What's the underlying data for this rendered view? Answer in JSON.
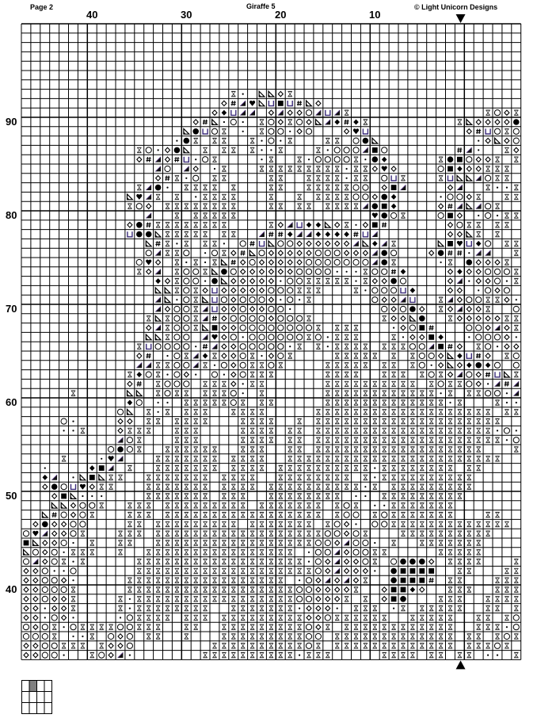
{
  "header": {
    "page_label": "Page 2",
    "title": "Giraffe 5",
    "copyright": "© Light Unicorn Designs"
  },
  "column_labels": [
    "40",
    "30",
    "20",
    "10"
  ],
  "row_labels": [
    "90",
    "80",
    "70",
    "60",
    "50",
    "40"
  ],
  "center_markers": {
    "top": "arrow-down-icon",
    "bottom": "arrow-up-icon"
  },
  "page_map": {
    "columns": 4,
    "rows": 3,
    "current_page": 2,
    "highlight_color": "#808080"
  },
  "pattern": {
    "symbol_codes": {
      ".": "empty",
      "h": "hourglass",
      "s": "small-dot",
      "o": "open-circle",
      "d": "open-diamond",
      "D": "filled-diamond",
      "c": "filled-circle",
      "S": "filled-square",
      "t": "triangle-lower-left",
      "T": "triangle-lower-right-filled",
      "u": "u-shape",
      "v": "heart",
      "f": "hash"
    },
    "rows": [
      ".......... .......... .......... .......... .......... ...",
      ".......... .......... .......... .......... .......... ...",
      ".......... .......... .......... .......... .......... ...",
      ".......... .......... .......... .......... .......... ...",
      ".......... .......... .......... .......... .......... ...",
      ".......... .......... .......... .......... .......... ...",
      ".......... .......... .......... .......... .......... ...",
      ".......... .......... ..hs.ttdh. .......... .......... ...",
      ".......... .......... .dfTvtuSuf td........ .......... ...",
      ".......... .......... dDuTT.dTdd oTuTh..... .........h odh",
      ".......... ........df tsos.hodho dtTDfDh... ......htdd ddc",
      ".......... .......tcu oh.s.hoosd o...dvu... .......dfu oho",
      ".......... ......sch. hh..hsosh. ..hh.oct.. ........sd tdo",
      ".......... ..hosdct.h .hh.hssh.. .hsoooTSo. ......fTs. .hd",
      ".......... ..dfTdfuso h....sh..h soooohscD. ....hcSodd h.h",
      ".......... ....To.Td. sh...hhhhh hhhhshhdvd ....oSDddh hh.",
      ".......... ....dfhso. hh....hh.. hhhhshh.ou h...huttTo hh.",
      ".......... ..hTcs.hhh h.h...hh.. hhhhhoo.dS T....dT..h ssh",
      ".......... .tvTh.h.sh hhh...h..h .hhhhoodcD ....soodh. .hh",
      ".......... .hod.hhhhh hhh...hh.h h.hhhhTcSD ....dfTtTo h..",
      ".......... ...T..h.hh hhh....... .......vco h...oSd.so shh",
      ".......... .dcfhhhhhh hh....hdTu DDtdhsdSf. .....dohh. hh.",
      ".......... .uccthhhhh .hh..TffDT TDDDDfuT.. .....ddth. h..",
      ".......... ...tfhsh.h hs.ofutood dddddTtDTh ....tSvuDo .hh",
      ".......... ...oThho.s ohdftodddd dooodddTco ...dcffsTT ..h",
      ".......... ..ovd.hshs htfdoddddd oooooooTch ....sh.cdd dh.",
      ".......... ..hdT.hooh tcoddddddo ooossshoof D....dDddo ooh",
      ".......... ....Ddhoos ctdddddsoo hhhhhshddc o....dTsdd osh",
      ".......... ....tthohd udddddoooh hh...hsooo uD...dd.so do.",
      ".......... ....Ttsoht uodooodsos h......odd Tu..hTdooh hds",
      ".......... ....TdoohT uddoddoos. ........od ocd.hdTddh ..o",
      ".......... ...hthoohT fdoooodooo h.......hd dtc..hdddd dhh",
      ".......... ...dThooht Sddooooooo oh.hhh...s doSf...ood Tdh",
      ".......... ...tthoo.T vdosoooooo hoshhh...h sddSD..soo ods",
      ".......... ..huoooosf Tddooooosh .hshhhh.hh hooTSfd.ho sdd",
      ".......... ..df.sohTD hddohsdoh. ...hhhhh.h .hoodtDufd .ho",
      ".......... ..TThhooTh sodohhoh.. ..hhhhh.hh .hosdtdDcD o.o",
      ".......... .hDohsods. osdohhh... ..hhhh..hh h.hohdTodf uth",
      ".......... .df.hooo.h hhdshh.... ..hhhhhhhh hh.hohhods TfT",
      ".....h.... .tt.hohh.h hhos.h.... ..hhhhhhhh hhhhsh.hho osT",
      ".......... .Do.ss.hhh hhoh.hh... ..hhhhhhhh hhhhhsh... hss",
      ".......... ot.hsh.hhh ..hhhh.... .hhhhhhhhh hhhhhhhhhh .hh",
      "....os.... dd.hh.hhhh ...hhhh..h .hhhhhhhhh hhhhhhhhhh h..",
      "....ssh... dhhh..hhh. ...hhhh.hh .hhhhhhhhh hhhhhhhhhh sos",
      ".......... Toh...hhh. ...hhhh.hh .hhhhhhhhh hhhhhhhhhh hso",
      ".........o coh..hhhhh h..hhh..hh .hhhhhhhhh hhhhhhhhh. ..h",
      "....h...sv T...hhhhhh h.hhhh..hh hhhhhhhhhh hhhhhhhhhh h..",
      "..s....DST .h..hhhhhh h.hhhh.hhh hhhhhhhshh hhhhhh.hh. ...",
      "..DT.stSth h..hhhhhhh .hhhh..hhh hhhhh.hshh hhhhhhhh.. ...",
      "..dcouvdhh ...hhhhhhh .hhhh.hhhh hhhhhhsh.h hhhhhhhh.. ...",
      "...dStsss. ...hhhhhhh .hhh..hhhh hhhh.ss.hh hhhhhhh... ...",
      "...ttdooh. .hhh.hhhhh hhhh.hhhhh hh.hoh.ssh hhhhhh.... ...",
      "..tfodoh.. .hhh.hhhhh hhhhhhhhhh hh.hoo.hoh hhhhhh...h h..",
      ".dcddoo... .hh.hhhhhh hhh.hhhhhh h.hods.ooh hhhhhhhhhh hh.",
      "ovTddoh... hhh.hhhhhh hhhhhhhhhh hhoodoh... hhhhhhhhhh ...",
      "Stddos.h.. hh..hhhhhh hhhhhhhhhh hoodToos.h ..hhhhhhh. ...",
      "todoshhh.. h..hhhhhhh hhhhhhhhh. sooTdoohh. ....hhhhh. ...",
      "oTdohsh... ..hhhhhhhh hhhhhhhhhh sodTddoh.o cccd.hhhh. ..h",
      "ddosso.... ..hhhhhhhh hhhhhhhhhh hodTddds.c SSSS..hh.. .hh",
      "ddoods.... .hhhhhhhhh hhhhhhhh.s odTdTdh..c SSSf.hh... hhh",
      "ddoooh.... .hhhhhhhhh hhhhhhhhho oddddh..dS SDd..hhh.. hhh",
      "ddoddh.... hshhhhhhhh hhhhhhhhho odddh.h.dS c...hhh..h hhh",
      "ddsddh.... hshhhhhhhh ..hhhhhhhs ddds.hhh.s h.hhhhh..h h.h",
      "ddsods.... sohhhh.hhh .hhhhhhhhh ddohhhhhh. .hhhhh..hh .ho",
      "odohsohhhh oohhh..hh. .hhhhhhhhh odh.hhhhhh hhhhhh..hh hso",
      "oooh.ssh.o do.hh..h.. .hhhhhhhhh oo.hhhhhhh hhhhhh.hh. hoh",
      "ddoohhh.hd do........ hhhhhhhhhh oh.hhhhhhh hhhhhh.hhh oh.",
      "ddoos..hod Ts.......h hhhhhhhhhs hhh.....hh hh.hh.hh.s s.h"
    ]
  }
}
